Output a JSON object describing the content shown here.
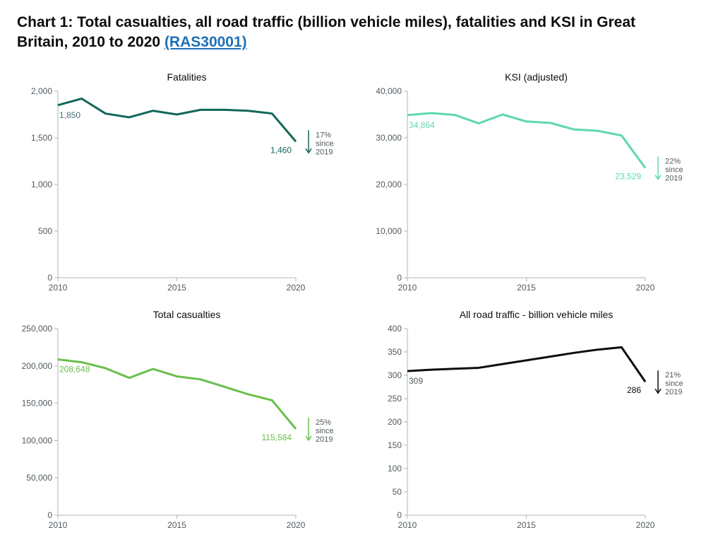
{
  "header": {
    "title_prefix": "Chart 1: Total casualties, all road traffic (billion vehicle miles), fatalities and KSI in Great Britain, 2010 to 2020 ",
    "link_text": "(RAS30001)",
    "link_color": "#1d70b8"
  },
  "common": {
    "years": [
      2010,
      2011,
      2012,
      2013,
      2014,
      2015,
      2016,
      2017,
      2018,
      2019,
      2020
    ],
    "x_ticks": [
      2010,
      2015,
      2020
    ],
    "axis_color": "#b1b4b6",
    "tick_label_color": "#505a5f",
    "title_fontsize": 14,
    "tick_fontsize": 12
  },
  "panels": [
    {
      "id": "fatalities",
      "title": "Fatalities",
      "type": "line",
      "color": "#12675a",
      "values": [
        1850,
        1920,
        1760,
        1720,
        1790,
        1750,
        1800,
        1800,
        1790,
        1760,
        1460
      ],
      "ylim": [
        0,
        2000
      ],
      "ytick_step": 500,
      "y_tick_format": "comma",
      "start_label": {
        "text": "1,850",
        "color": "#4a6f7f"
      },
      "end_label": {
        "text": "1,460",
        "color": "#12675a"
      },
      "change": {
        "pct": "17%",
        "since": "since",
        "year": "2019",
        "dir": "down",
        "color": "#12675a"
      }
    },
    {
      "id": "ksi",
      "title": "KSI (adjusted)",
      "type": "line",
      "color": "#5ed7b4",
      "values": [
        34864,
        35300,
        34900,
        33100,
        35000,
        33500,
        33200,
        31800,
        31500,
        30500,
        23529
      ],
      "ylim": [
        0,
        40000
      ],
      "ytick_step": 10000,
      "y_tick_format": "comma",
      "start_label": {
        "text": "34,864",
        "color": "#5ed7b4"
      },
      "end_label": {
        "text": "23,529",
        "color": "#5ed7b4"
      },
      "change": {
        "pct": "22%",
        "since": "since",
        "year": "2019",
        "dir": "down",
        "color": "#5ed7b4"
      }
    },
    {
      "id": "total",
      "title": "Total casualties",
      "type": "line",
      "color": "#6abf4b",
      "values": [
        208648,
        205000,
        197000,
        184000,
        196000,
        186000,
        182000,
        172000,
        162000,
        154000,
        115584
      ],
      "ylim": [
        0,
        250000
      ],
      "ytick_step": 50000,
      "y_tick_format": "comma",
      "start_label": {
        "text": "208,648",
        "color": "#6abf4b"
      },
      "end_label": {
        "text": "115,584",
        "color": "#6abf4b"
      },
      "change": {
        "pct": "25%",
        "since": "since",
        "year": "2019",
        "dir": "down",
        "color": "#6abf4b"
      }
    },
    {
      "id": "traffic",
      "title": "All road traffic - billion vehicle miles",
      "type": "line",
      "color": "#0b0c0c",
      "values": [
        309,
        312,
        314,
        316,
        324,
        332,
        340,
        348,
        355,
        360,
        286
      ],
      "ylim": [
        0,
        400
      ],
      "ytick_step": 50,
      "y_tick_format": "plain",
      "start_label": {
        "text": "309",
        "color": "#505a5f"
      },
      "end_label": {
        "text": "286",
        "color": "#0b0c0c"
      },
      "change": {
        "pct": "21%",
        "since": "since",
        "year": "2019",
        "dir": "down",
        "color": "#0b0c0c"
      }
    }
  ]
}
